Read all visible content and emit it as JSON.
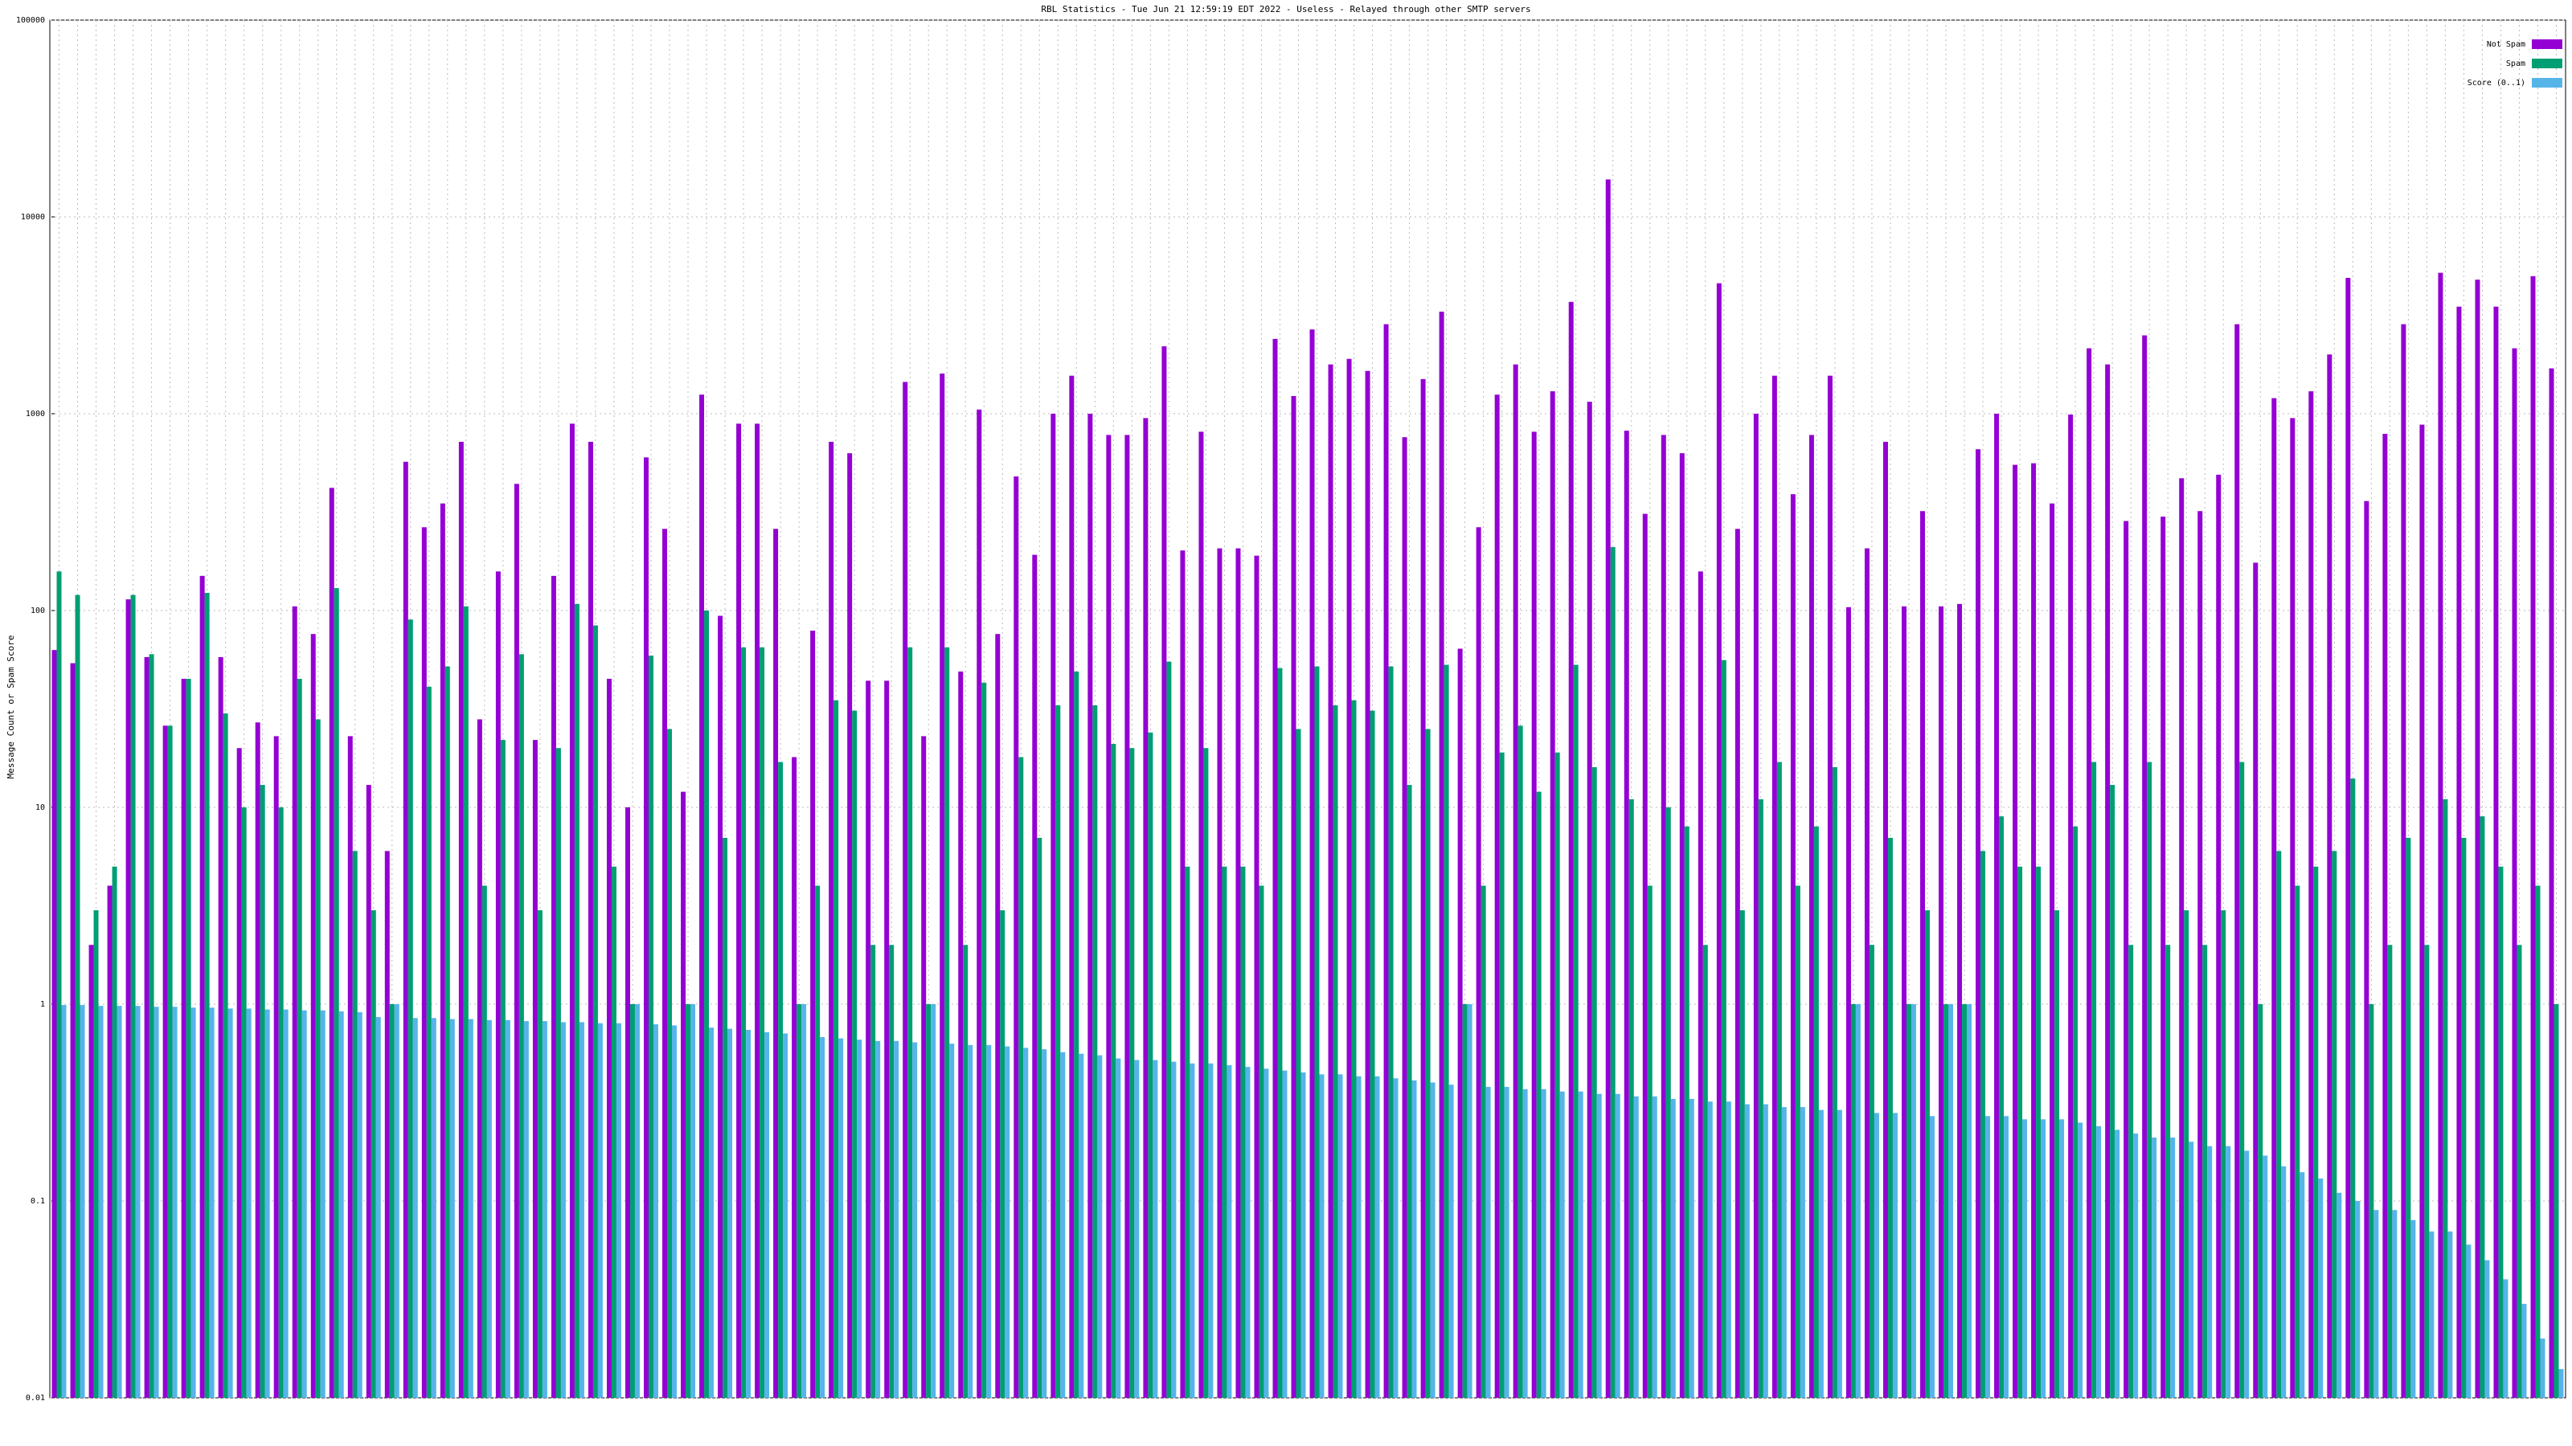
{
  "chart_data": {
    "type": "bar",
    "title": "RBL Statistics - Tue Jun 21 12:59:19 EDT 2022 - Useless - Relayed through other SMTP servers",
    "y_label": "Message Count or Spam Score",
    "log_scale": true,
    "grid": true,
    "legend": "top-right",
    "ylim": [
      0.01,
      100000
    ],
    "yticks": [
      0.01,
      0.1,
      1,
      10,
      100,
      1000,
      10000,
      100000
    ],
    "categories": [
      null,
      null,
      null,
      null,
      null,
      null,
      null,
      null,
      null,
      null,
      null,
      null,
      null,
      null,
      null,
      null,
      null,
      null,
      null,
      null,
      null,
      null,
      null,
      null,
      null,
      null,
      null,
      null,
      null,
      null,
      null,
      null,
      null,
      null,
      null,
      null,
      null,
      null,
      null,
      null,
      null,
      null,
      null,
      null,
      null,
      null,
      null,
      null,
      null,
      null,
      null,
      null,
      null,
      null,
      null,
      null,
      null,
      null,
      null,
      null,
      null,
      null,
      null,
      null,
      null,
      null,
      null,
      null,
      null,
      null,
      null,
      null,
      null,
      null,
      null,
      null,
      null,
      null,
      null,
      null,
      null,
      null,
      null,
      null,
      null,
      null,
      null,
      null,
      null,
      null,
      null,
      null,
      null,
      null,
      null,
      null,
      null,
      null,
      null,
      null,
      null,
      null,
      null,
      null,
      null,
      null,
      null,
      null,
      null,
      null,
      null,
      null,
      null,
      null,
      null,
      null,
      null,
      null,
      null,
      null,
      null,
      null,
      null,
      null,
      null,
      null,
      null,
      null,
      null,
      null,
      null,
      null,
      null,
      null,
      null,
      null
    ],
    "series": [
      {
        "name": "Not Spam",
        "color": "#9400d3",
        "values": [
          63,
          54,
          2,
          4,
          114,
          58,
          26,
          45,
          150,
          58,
          20,
          27,
          23,
          105,
          76,
          420,
          23,
          13,
          6,
          570,
          265,
          350,
          720,
          28,
          158,
          440,
          22,
          150,
          890,
          720,
          45,
          10,
          600,
          260,
          12,
          1250,
          94,
          890,
          890,
          260,
          18,
          79,
          720,
          630,
          44,
          44,
          1450,
          23,
          1600,
          49,
          1050,
          76,
          480,
          192,
          1000,
          1560,
          1000,
          780,
          780,
          950,
          2200,
          202,
          810,
          207,
          207,
          190,
          2400,
          1230,
          2680,
          1780,
          1900,
          1650,
          2850,
          760,
          1500,
          3300,
          64,
          265,
          1250,
          1780,
          810,
          1300,
          3700,
          1150,
          15500,
          820,
          310,
          780,
          630,
          158,
          4600,
          260,
          1000,
          1560,
          390,
          780,
          1560,
          104,
          207,
          720,
          105,
          320,
          105,
          108,
          660,
          1000,
          550,
          560,
          350,
          990,
          2150,
          1780,
          285,
          2500,
          300,
          470,
          320,
          490,
          2850,
          175,
          1200,
          950,
          1300,
          2000,
          4900,
          360,
          790,
          2850,
          880,
          5200,
          3500,
          4800,
          3500,
          2150,
          5000,
          1700
        ]
      },
      {
        "name": "Spam",
        "color": "#009e73",
        "values": [
          158,
          120,
          3,
          5,
          120,
          60,
          26,
          45,
          123,
          30,
          10,
          13,
          10,
          45,
          28,
          130,
          6,
          3,
          1,
          90,
          41,
          52,
          105,
          4,
          22,
          60,
          3,
          20,
          108,
          84,
          5,
          1,
          59,
          25,
          1,
          100,
          7,
          65,
          65,
          17,
          1,
          4,
          35,
          31,
          2,
          2,
          65,
          1,
          65,
          2,
          43,
          3,
          18,
          7,
          33,
          49,
          33,
          21,
          20,
          24,
          55,
          5,
          20,
          5,
          5,
          4,
          51,
          25,
          52,
          33,
          35,
          31,
          52,
          13,
          25,
          53,
          1,
          4,
          19,
          26,
          12,
          19,
          53,
          16,
          210,
          11,
          4,
          10,
          8,
          2,
          56,
          3,
          11,
          17,
          4,
          8,
          16,
          1,
          2,
          7,
          1,
          3,
          1,
          1,
          6,
          9,
          5,
          5,
          3,
          8,
          17,
          13,
          2,
          17,
          2,
          3,
          2,
          3,
          17,
          1,
          6,
          4,
          5,
          6,
          14,
          1,
          2,
          7,
          2,
          11,
          7,
          9,
          5,
          2,
          4,
          1
        ]
      },
      {
        "name": "Score (0..1)",
        "color": "#56b4e9",
        "values": [
          0.99,
          0.99,
          0.98,
          0.98,
          0.98,
          0.97,
          0.97,
          0.96,
          0.96,
          0.95,
          0.95,
          0.94,
          0.94,
          0.93,
          0.93,
          0.92,
          0.91,
          0.86,
          1,
          0.85,
          0.85,
          0.84,
          0.84,
          0.83,
          0.83,
          0.82,
          0.82,
          0.81,
          0.81,
          0.8,
          0.8,
          1,
          0.79,
          0.78,
          1,
          0.76,
          0.75,
          0.74,
          0.72,
          0.71,
          1,
          0.68,
          0.67,
          0.66,
          0.65,
          0.65,
          0.64,
          1,
          0.63,
          0.62,
          0.62,
          0.61,
          0.6,
          0.59,
          0.57,
          0.56,
          0.55,
          0.53,
          0.52,
          0.52,
          0.51,
          0.5,
          0.5,
          0.49,
          0.48,
          0.47,
          0.46,
          0.45,
          0.44,
          0.44,
          0.43,
          0.43,
          0.42,
          0.41,
          0.4,
          0.39,
          1,
          0.38,
          0.38,
          0.37,
          0.37,
          0.36,
          0.36,
          0.35,
          0.35,
          0.34,
          0.34,
          0.33,
          0.33,
          0.32,
          0.32,
          0.31,
          0.31,
          0.3,
          0.3,
          0.29,
          0.29,
          1,
          0.28,
          0.28,
          1,
          0.27,
          1,
          1,
          0.27,
          0.27,
          0.26,
          0.26,
          0.26,
          0.25,
          0.24,
          0.23,
          0.22,
          0.21,
          0.21,
          0.2,
          0.19,
          0.19,
          0.18,
          0.17,
          0.15,
          0.14,
          0.13,
          0.11,
          0.1,
          0.09,
          0.09,
          0.08,
          0.07,
          0.07,
          0.06,
          0.05,
          0.04,
          0.03,
          0.02,
          0.014
        ]
      }
    ]
  }
}
